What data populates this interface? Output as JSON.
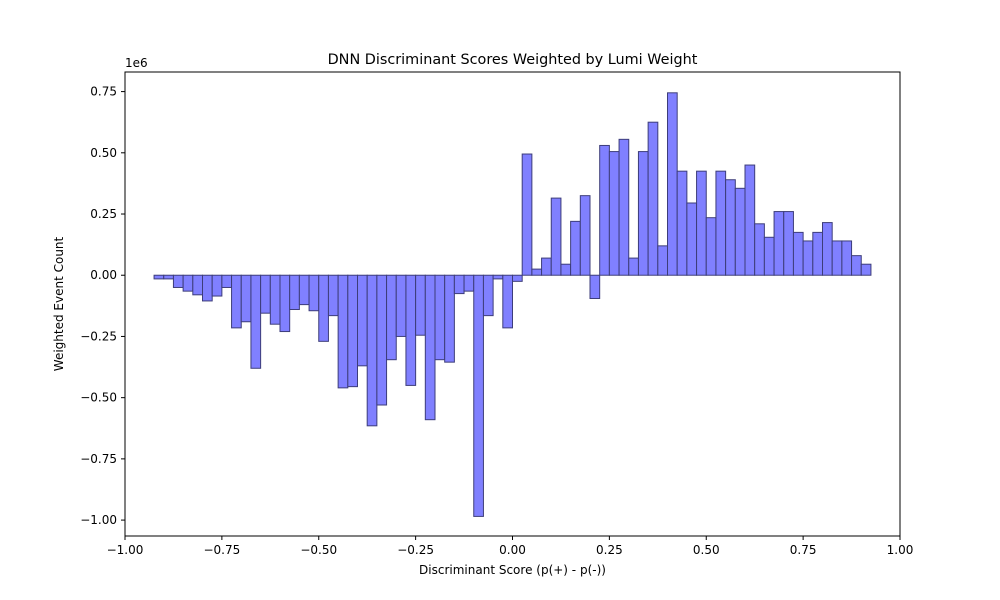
{
  "chart_data": {
    "type": "bar",
    "title": "DNN Discriminant Scores Weighted by Lumi Weight",
    "xlabel": "Discriminant Score (p(+) - p(-))",
    "ylabel": "Weighted Event Count",
    "y_offset_label": "1e6",
    "xlim": [
      -1.0,
      1.0
    ],
    "ylim": [
      -1.065,
      0.83
    ],
    "x_ticks": [
      -1.0,
      -0.75,
      -0.5,
      -0.25,
      0.0,
      0.25,
      0.5,
      0.75,
      1.0
    ],
    "x_tick_labels": [
      "−1.00",
      "−0.75",
      "−0.50",
      "−0.25",
      "0.00",
      "0.25",
      "0.50",
      "0.75",
      "1.00"
    ],
    "y_ticks": [
      -1.0,
      -0.75,
      -0.5,
      -0.25,
      0.0,
      0.25,
      0.5,
      0.75
    ],
    "y_tick_labels": [
      "−1.00",
      "−0.75",
      "−0.50",
      "−0.25",
      "0.00",
      "0.25",
      "0.50",
      "0.75"
    ],
    "bin_start": -0.95,
    "bin_width": 0.025,
    "values": [
      0.0,
      -0.015,
      -0.015,
      -0.05,
      -0.065,
      -0.08,
      -0.105,
      -0.085,
      -0.05,
      -0.215,
      -0.19,
      -0.38,
      -0.155,
      -0.2,
      -0.23,
      -0.14,
      -0.12,
      -0.145,
      -0.27,
      -0.165,
      -0.46,
      -0.455,
      -0.37,
      -0.615,
      -0.53,
      -0.345,
      -0.25,
      -0.45,
      -0.245,
      -0.59,
      -0.345,
      -0.355,
      -0.075,
      -0.065,
      -0.985,
      -0.165,
      -0.015,
      -0.215,
      -0.025,
      0.495,
      0.025,
      0.07,
      0.315,
      0.045,
      0.22,
      0.325,
      -0.095,
      0.53,
      0.505,
      0.555,
      0.07,
      0.505,
      0.625,
      0.12,
      0.745,
      0.425,
      0.295,
      0.425,
      0.235,
      0.425,
      0.39,
      0.355,
      0.45,
      0.21,
      0.155,
      0.26,
      0.26,
      0.175,
      0.14,
      0.175,
      0.215,
      0.14,
      0.14,
      0.08,
      0.045
    ],
    "bar_fill": "#8080ff",
    "bar_edge": "#3d3d7a",
    "grid": false,
    "legend": false
  }
}
